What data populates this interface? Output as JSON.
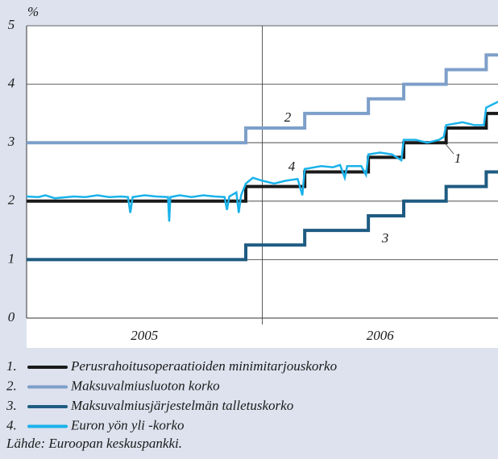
{
  "chart_data": {
    "type": "line",
    "y_label": "%",
    "x_labels": [
      "2005",
      "2006"
    ],
    "xlim": [
      2005,
      2007
    ],
    "xticks": [
      2006
    ],
    "ylim": [
      0,
      5
    ],
    "yticks": [
      0,
      1,
      2,
      3,
      4,
      5
    ],
    "grid": true,
    "step": true,
    "series": [
      {
        "name": "Perusrahoitusoperaatioiden minimitarjouskorko",
        "color": "#1a1a1a",
        "x": [
          2005,
          2005.93,
          2005.93,
          2006.18,
          2006.18,
          2006.45,
          2006.45,
          2006.6,
          2006.6,
          2006.78,
          2006.78,
          2006.95,
          2006.95,
          2007
        ],
        "values": [
          2,
          2,
          2.25,
          2.25,
          2.5,
          2.5,
          2.75,
          2.75,
          3,
          3,
          3.25,
          3.25,
          3.5,
          3.5
        ]
      },
      {
        "name": "Maksuvalmiusluoton korko",
        "color": "#7d9fc9",
        "x": [
          2005,
          2005.93,
          2005.93,
          2006.18,
          2006.18,
          2006.45,
          2006.45,
          2006.6,
          2006.6,
          2006.78,
          2006.78,
          2006.95,
          2006.95,
          2007
        ],
        "values": [
          3,
          3,
          3.25,
          3.25,
          3.5,
          3.5,
          3.75,
          3.75,
          4,
          4,
          4.25,
          4.25,
          4.5,
          4.5
        ]
      },
      {
        "name": "Maksuvalmiusjärjestelmän talletuskorko",
        "color": "#1f5b82",
        "x": [
          2005,
          2005.93,
          2005.93,
          2006.18,
          2006.18,
          2006.45,
          2006.45,
          2006.6,
          2006.6,
          2006.78,
          2006.78,
          2006.95,
          2006.95,
          2007
        ],
        "values": [
          1,
          1,
          1.25,
          1.25,
          1.5,
          1.5,
          1.75,
          1.75,
          2,
          2,
          2.25,
          2.25,
          2.5,
          2.5
        ]
      },
      {
        "name": "Euron yön yli -korko",
        "color": "#1ab2ea",
        "x": [
          2005,
          2005.05,
          2005.08,
          2005.12,
          2005.2,
          2005.25,
          2005.3,
          2005.35,
          2005.4,
          2005.43,
          2005.44,
          2005.45,
          2005.5,
          2005.55,
          2005.6,
          2005.605,
          2005.61,
          2005.65,
          2005.7,
          2005.75,
          2005.8,
          2005.84,
          2005.85,
          2005.86,
          2005.89,
          2005.9,
          2005.91,
          2005.93,
          2005.96,
          2006,
          2006.05,
          2006.1,
          2006.15,
          2006.17,
          2006.18,
          2006.25,
          2006.3,
          2006.33,
          2006.35,
          2006.36,
          2006.42,
          2006.44,
          2006.45,
          2006.5,
          2006.55,
          2006.59,
          2006.6,
          2006.65,
          2006.7,
          2006.75,
          2006.77,
          2006.78,
          2006.85,
          2006.9,
          2006.94,
          2006.95,
          2007
        ],
        "values": [
          2.08,
          2.07,
          2.1,
          2.05,
          2.08,
          2.07,
          2.1,
          2.07,
          2.08,
          2.07,
          1.8,
          2.07,
          2.1,
          2.08,
          2.07,
          1.65,
          2.07,
          2.1,
          2.07,
          2.1,
          2.08,
          2.07,
          1.85,
          2.08,
          2.15,
          1.8,
          2.1,
          2.3,
          2.4,
          2.35,
          2.3,
          2.35,
          2.38,
          2.1,
          2.55,
          2.6,
          2.58,
          2.62,
          2.4,
          2.6,
          2.6,
          2.45,
          2.8,
          2.83,
          2.8,
          2.7,
          3.05,
          3.05,
          3,
          3.05,
          3.1,
          3.3,
          3.35,
          3.3,
          3.3,
          3.6,
          3.7
        ]
      }
    ],
    "annotations": [
      "1",
      "2",
      "3",
      "4"
    ],
    "legend_prefixes": [
      "1.",
      "2.",
      "3.",
      "4."
    ],
    "source": "Lähde: Euroopan keskuspankki."
  }
}
